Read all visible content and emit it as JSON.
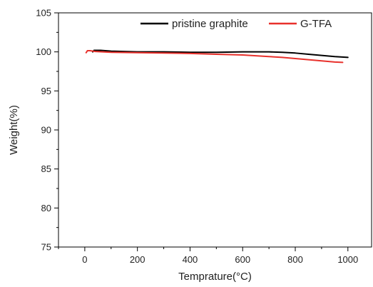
{
  "chart_data": {
    "type": "line",
    "title": "",
    "xlabel": "Temprature(°C)",
    "ylabel": "Weight(%)",
    "xlim": [
      -100,
      1090
    ],
    "ylim": [
      75,
      105
    ],
    "xticks": [
      0,
      200,
      400,
      600,
      800,
      1000
    ],
    "yticks": [
      75,
      80,
      85,
      90,
      95,
      100,
      105
    ],
    "xtick_labels": [
      "0",
      "200",
      "400",
      "600",
      "800",
      "1000"
    ],
    "ytick_labels": [
      "75",
      "80",
      "85",
      "90",
      "95",
      "100",
      "105"
    ],
    "grid": false,
    "legend_position": "top-right",
    "series": [
      {
        "name": "pristine graphite",
        "color": "#000000",
        "x": [
          30,
          35,
          40,
          60,
          100,
          200,
          300,
          400,
          500,
          600,
          700,
          750,
          800,
          850,
          900,
          950,
          1000
        ],
        "y": [
          100.0,
          100.2,
          100.2,
          100.2,
          100.1,
          100.0,
          100.0,
          99.95,
          99.95,
          100.0,
          100.0,
          99.95,
          99.85,
          99.7,
          99.55,
          99.4,
          99.3
        ]
      },
      {
        "name": "G-TFA",
        "color": "#e8312c",
        "x": [
          5,
          10,
          20,
          40,
          100,
          200,
          300,
          400,
          500,
          600,
          650,
          700,
          750,
          800,
          850,
          900,
          950,
          980
        ],
        "y": [
          99.9,
          100.15,
          100.15,
          100.05,
          99.95,
          99.9,
          99.85,
          99.8,
          99.7,
          99.6,
          99.5,
          99.4,
          99.3,
          99.15,
          99.0,
          98.85,
          98.7,
          98.65
        ]
      }
    ]
  }
}
